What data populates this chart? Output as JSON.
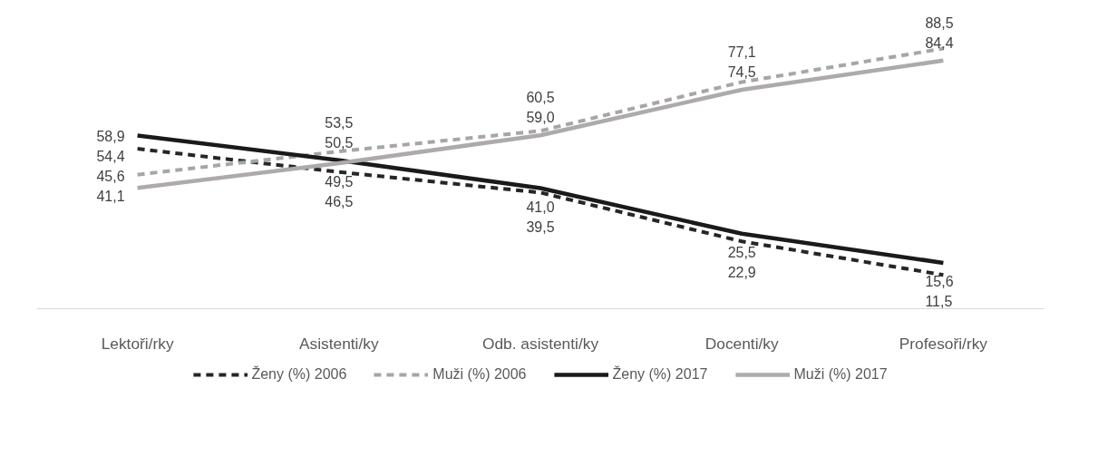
{
  "chart_data": {
    "type": "line",
    "categories": [
      "Lektoři/rky",
      "Asistenti/ky",
      "Odb. asistenti/ky",
      "Docenti/ky",
      "Profesoři/rky"
    ],
    "series": [
      {
        "name": "Ženy (%) 2006",
        "color": "#262626",
        "line_style": "dashed",
        "values": [
          54.4,
          46.5,
          39.5,
          22.9,
          11.5
        ],
        "value_labels": [
          "54,4",
          "46,5",
          "39,5",
          "22,9",
          "11,5"
        ]
      },
      {
        "name": "Muži (%) 2006",
        "color": "#a6a6a6",
        "line_style": "dashed",
        "values": [
          45.6,
          53.5,
          60.5,
          77.1,
          88.5
        ],
        "value_labels": [
          "45,6",
          "53,5",
          "60,5",
          "77,1",
          "88,5"
        ]
      },
      {
        "name": "Ženy (%) 2017",
        "color": "#1a1a1a",
        "line_style": "solid",
        "values": [
          58.9,
          50.5,
          41.0,
          25.5,
          15.6
        ],
        "value_labels": [
          "58,9",
          "50,5",
          "41,0",
          "25,5",
          "15,6"
        ]
      },
      {
        "name": "Muži (%) 2017",
        "color": "#aeaaaa",
        "line_style": "solid",
        "values": [
          41.1,
          49.5,
          59.0,
          74.5,
          84.4
        ],
        "value_labels": [
          "41,1",
          "49,5",
          "59,0",
          "74,5",
          "84,4"
        ]
      }
    ],
    "legend": "bottom"
  }
}
